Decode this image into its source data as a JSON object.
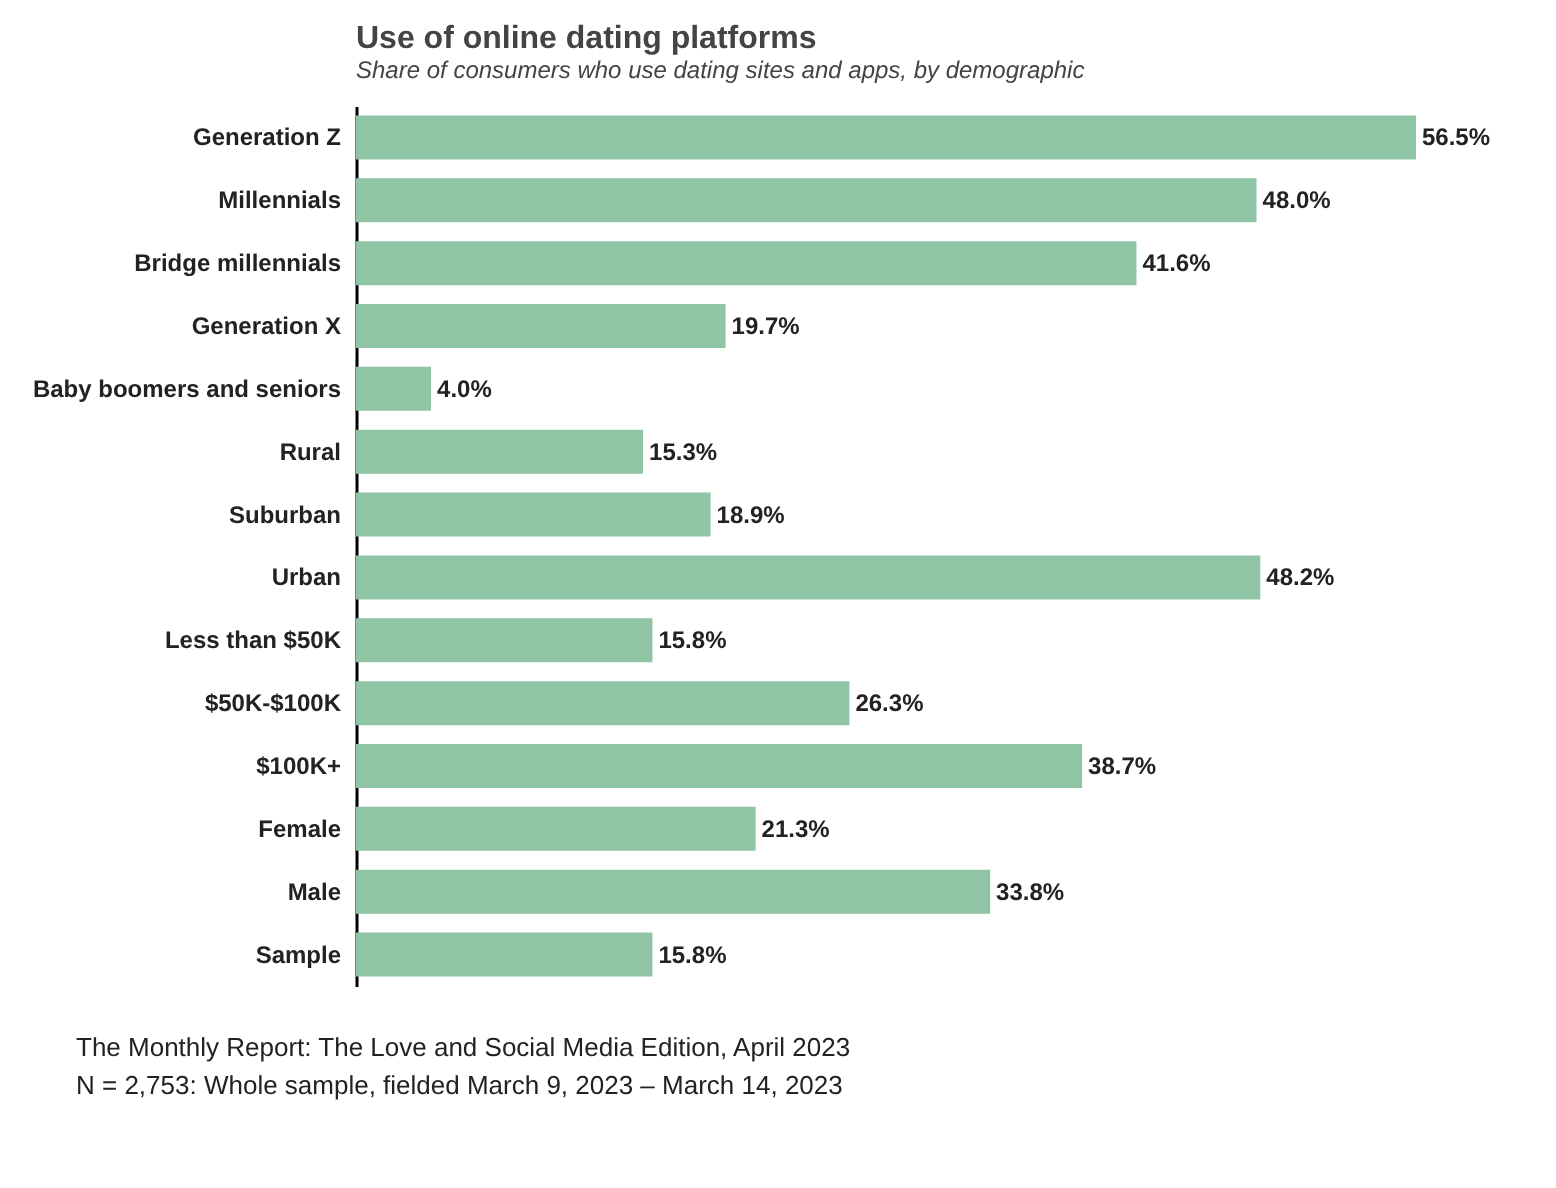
{
  "chart_data": {
    "type": "bar",
    "orientation": "horizontal",
    "title": "Use of online dating platforms",
    "subtitle": "Share of consumers who use dating sites and apps, by demographic",
    "categories": [
      "Generation Z",
      "Millennials",
      "Bridge millennials",
      "Generation X",
      "Baby boomers and seniors",
      "Rural",
      "Suburban",
      "Urban",
      "Less than $50K",
      "$50K-$100K",
      "$100K+",
      "Female",
      "Male",
      "Sample"
    ],
    "values": [
      56.5,
      48.0,
      41.6,
      19.7,
      4.0,
      15.3,
      18.9,
      48.2,
      15.8,
      26.3,
      38.7,
      21.3,
      33.8,
      15.8
    ],
    "value_labels": [
      "56.5%",
      "48.0%",
      "41.6%",
      "19.7%",
      "4.0%",
      "15.3%",
      "18.9%",
      "48.2%",
      "15.8%",
      "26.3%",
      "38.7%",
      "21.3%",
      "33.8%",
      "15.8%"
    ],
    "color": "#8fc4a5",
    "annotations": [
      "The Monthly Report: The Love and Social Media Edition, April 2023",
      "N = 2,753: Whole sample, fielded March 9, 2023 – March 14, 2023"
    ]
  }
}
